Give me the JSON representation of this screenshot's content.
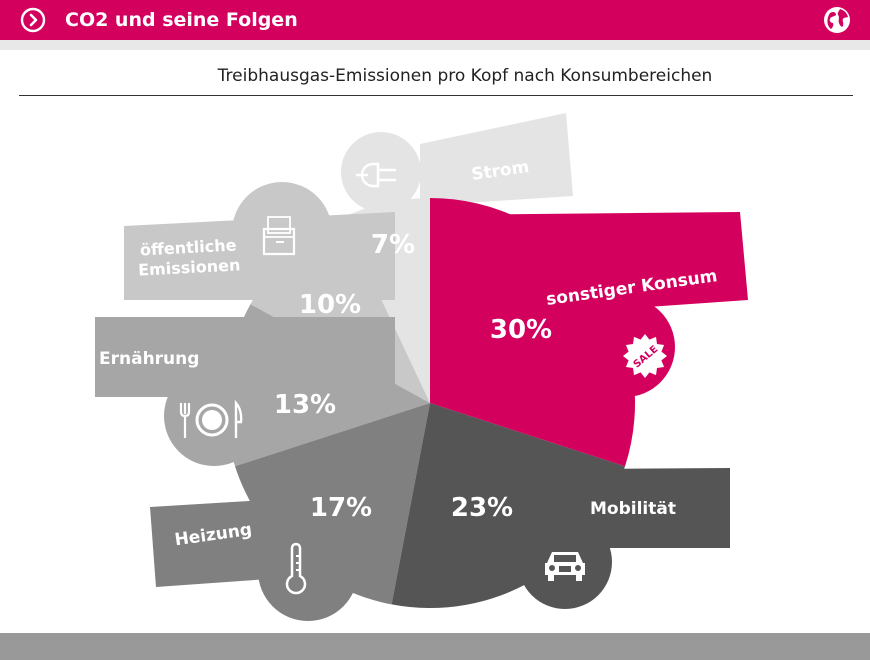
{
  "header": {
    "title": "CO2 und seine Folgen",
    "nav_icon": "chevron-right-circle-icon",
    "globe_icon": "globe-icon",
    "accent_color": "#d4005e"
  },
  "chart_data": {
    "type": "pie",
    "title": "Treibhausgas-Emissionen pro Kopf nach Konsumbereichen",
    "unit": "%",
    "slices": [
      {
        "label": "sonstiger Konsum",
        "value": 30,
        "value_label": "30%",
        "color": "#d4005e",
        "icon": "sale-badge-icon"
      },
      {
        "label": "Mobilität",
        "value": 23,
        "value_label": "23%",
        "color": "#555555",
        "icon": "car-icon"
      },
      {
        "label": "Heizung",
        "value": 17,
        "value_label": "17%",
        "color": "#808080",
        "icon": "thermometer-icon"
      },
      {
        "label": "Ernährung",
        "value": 13,
        "value_label": "13%",
        "color": "#a6a6a6",
        "icon": "plate-cutlery-icon"
      },
      {
        "label": "öffentliche Emissionen",
        "value": 10,
        "value_label": "10%",
        "color": "#c8c8c8",
        "icon": "archive-box-icon"
      },
      {
        "label": "Strom",
        "value": 7,
        "value_label": "7%",
        "color": "#e4e4e4",
        "icon": "plug-icon"
      }
    ]
  }
}
